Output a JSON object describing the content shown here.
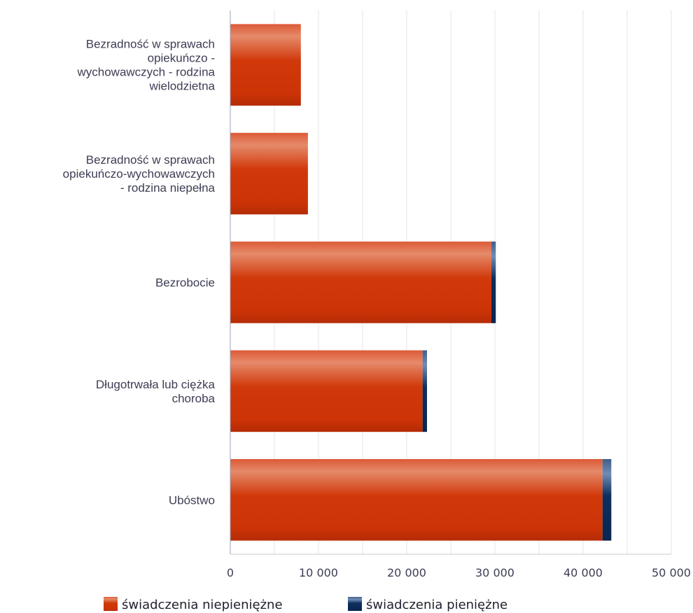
{
  "chart_data": {
    "type": "bar",
    "orientation": "horizontal",
    "stacked": true,
    "categories": [
      "Bezradność w sprawach opiekuńczo - wychowawczych - rodzina wielodzietna",
      "Bezradność w sprawach opiekuńczo-wychowawczych - rodzina niepełna",
      "Bezrobocie",
      "Długotrwała lub ciężka choroba",
      "Ubóstwo"
    ],
    "category_lines": [
      [
        "Bezradność w sprawach",
        "opiekuńczo -",
        "wychowawczych - rodzina",
        "wielodzietna"
      ],
      [
        "Bezradność w sprawach",
        "opiekuńczo-wychowawczych",
        "- rodzina niepełna"
      ],
      [
        "Bezrobocie"
      ],
      [
        "Długotrwała lub ciężka",
        "choroba"
      ],
      [
        "Ubóstwo"
      ]
    ],
    "series": [
      {
        "name": "świadczenia niepieniężne",
        "color": "#d1380a",
        "values": [
          8000,
          8800,
          29600,
          21800,
          42200
        ]
      },
      {
        "name": "świadczenia pieniężne",
        "color": "#0d2f5e",
        "values": [
          0,
          0,
          500,
          500,
          1000
        ]
      }
    ],
    "xlim": [
      0,
      50000
    ],
    "xticks": [
      0,
      10000,
      20000,
      30000,
      40000,
      50000
    ],
    "xtick_labels": [
      "0",
      "10 000",
      "20 000",
      "30 000",
      "40 000",
      "50 000"
    ],
    "grid": true,
    "legend_position": "bottom"
  }
}
